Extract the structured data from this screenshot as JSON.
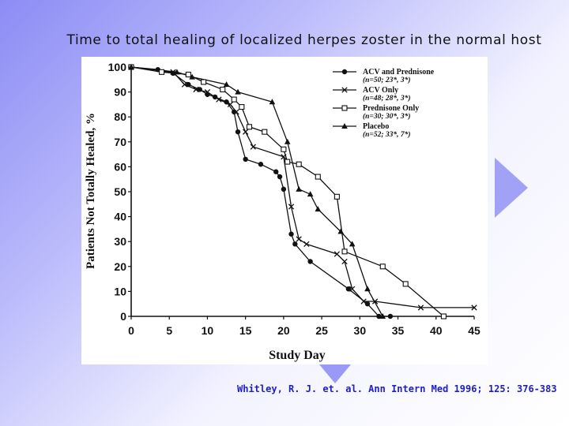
{
  "slide": {
    "title": "Time to total healing of localized herpes zoster in the normal host",
    "citation": "Whitley, R. J. et. al. Ann Intern Med 1996; 125: 376-383"
  },
  "chart_data": {
    "type": "line",
    "title": "",
    "xlabel": "Study Day",
    "ylabel": "Patients Not Totally Healed, %",
    "xlim": [
      0,
      45
    ],
    "ylim": [
      0,
      100
    ],
    "xticks": [
      "0",
      "5",
      "10",
      "15",
      "20",
      "25",
      "30",
      "35",
      "40",
      "45"
    ],
    "yticks": [
      "0",
      "10",
      "20",
      "30",
      "40",
      "50",
      "60",
      "70",
      "80",
      "90",
      "100"
    ],
    "grid": false,
    "legend_position": "top-right",
    "series": [
      {
        "name": "ACV and Prednisone",
        "name_extra": "(n=50; 23*, 3*)",
        "marker": "circle",
        "points": [
          [
            0,
            100
          ],
          [
            3.5,
            99
          ],
          [
            5.5,
            97.5
          ],
          [
            7.5,
            93
          ],
          [
            9,
            91
          ],
          [
            10,
            89
          ],
          [
            11,
            88
          ],
          [
            12.5,
            86
          ],
          [
            13.5,
            82
          ],
          [
            14,
            74
          ],
          [
            15,
            63
          ],
          [
            17,
            61
          ],
          [
            19,
            58
          ],
          [
            19.5,
            56
          ],
          [
            20,
            51
          ],
          [
            21,
            33
          ],
          [
            21.5,
            29
          ],
          [
            23.5,
            22
          ],
          [
            28.5,
            11
          ],
          [
            31,
            5
          ],
          [
            32.5,
            0
          ],
          [
            34,
            0
          ]
        ]
      },
      {
        "name": "ACV Only",
        "name_extra": "(n=48; 28*, 3*)",
        "marker": "x",
        "points": [
          [
            0,
            100
          ],
          [
            5.5,
            98
          ],
          [
            7,
            93
          ],
          [
            8.5,
            91
          ],
          [
            10,
            90
          ],
          [
            11.5,
            87
          ],
          [
            13,
            85
          ],
          [
            13.8,
            82
          ],
          [
            15,
            74
          ],
          [
            16,
            68
          ],
          [
            20,
            64
          ],
          [
            21,
            44
          ],
          [
            22,
            31
          ],
          [
            23,
            29
          ],
          [
            27,
            25
          ],
          [
            28,
            22
          ],
          [
            29,
            11
          ],
          [
            30.5,
            6
          ],
          [
            32,
            6
          ],
          [
            38,
            3.5
          ],
          [
            45,
            3.5
          ]
        ]
      },
      {
        "name": "Prednisone Only",
        "name_extra": "(n=30; 30*, 3*)",
        "marker": "square",
        "points": [
          [
            0,
            100
          ],
          [
            4,
            98
          ],
          [
            7.5,
            97
          ],
          [
            9.5,
            94
          ],
          [
            12,
            91
          ],
          [
            13.5,
            87
          ],
          [
            14.5,
            84
          ],
          [
            15.5,
            76
          ],
          [
            17.5,
            74
          ],
          [
            20,
            67
          ],
          [
            20.5,
            62
          ],
          [
            22,
            61
          ],
          [
            24.5,
            56
          ],
          [
            27,
            48
          ],
          [
            28,
            26
          ],
          [
            33,
            20
          ],
          [
            36,
            13
          ],
          [
            41,
            0
          ]
        ]
      },
      {
        "name": "Placebo",
        "name_extra": "(n=52; 33*, 7*)",
        "marker": "triangle",
        "points": [
          [
            0,
            100
          ],
          [
            6,
            98
          ],
          [
            8,
            96
          ],
          [
            12.5,
            93
          ],
          [
            14,
            90
          ],
          [
            18.5,
            86
          ],
          [
            20.5,
            70
          ],
          [
            22,
            51
          ],
          [
            23.5,
            49
          ],
          [
            24.5,
            43
          ],
          [
            27.5,
            34
          ],
          [
            29,
            29
          ],
          [
            31,
            11
          ],
          [
            33,
            0
          ]
        ]
      }
    ]
  }
}
